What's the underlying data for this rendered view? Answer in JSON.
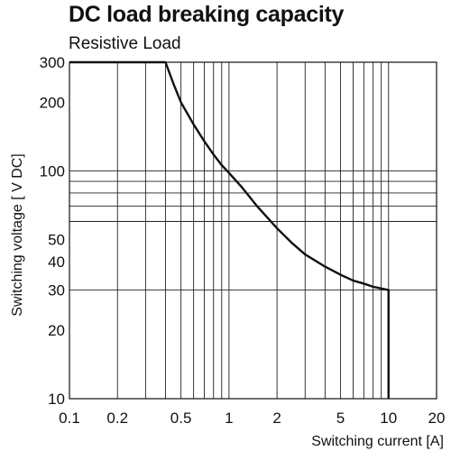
{
  "chart_data": {
    "type": "line",
    "title": "DC load breaking capacity",
    "subtitle": "Resistive Load",
    "xlabel": "Switching current [A]",
    "ylabel": "Switching voltage [ V DC]",
    "xscale": "log",
    "yscale": "log",
    "xlim": [
      0.1,
      20
    ],
    "ylim": [
      10,
      300
    ],
    "x_ticks": [
      0.1,
      0.2,
      0.5,
      1,
      2,
      5,
      10,
      20
    ],
    "x_tick_labels": [
      "0.1",
      "0.2",
      "0.5",
      "1",
      "2",
      "5",
      "10",
      "20"
    ],
    "y_ticks": [
      10,
      20,
      30,
      40,
      50,
      100,
      200,
      300
    ],
    "y_tick_labels": [
      "10",
      "20",
      "30",
      "40",
      "50",
      "100",
      "200",
      "300"
    ],
    "x_grid": [
      0.1,
      0.2,
      0.3,
      0.4,
      0.5,
      0.6,
      0.7,
      0.8,
      0.9,
      1,
      2,
      3,
      4,
      5,
      6,
      7,
      8,
      9,
      10,
      20
    ],
    "y_grid": [
      30,
      60,
      70,
      80,
      90,
      100
    ],
    "grid": true,
    "series": [
      {
        "x": [
          0.1,
          0.4,
          0.45,
          0.5,
          0.6,
          0.7,
          0.8,
          0.9,
          1,
          1.2,
          1.5,
          2,
          2.5,
          3,
          4,
          5,
          6,
          7,
          8,
          10,
          10
        ],
        "y": [
          300,
          300,
          240,
          200,
          160,
          135,
          118,
          106,
          98,
          85,
          70,
          56,
          48,
          43,
          38,
          35,
          33,
          32,
          31,
          30,
          10
        ]
      }
    ]
  }
}
